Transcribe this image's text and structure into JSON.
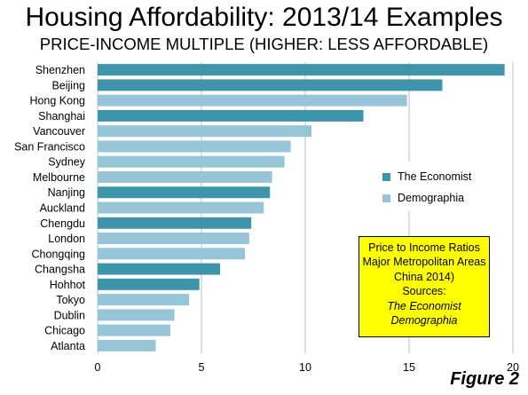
{
  "title": "Housing Affordability: 2013/14 Examples",
  "subtitle": "PRICE-INCOME MULTIPLE (HIGHER: LESS AFFORDABLE)",
  "colors": {
    "economist": "#3e94aa",
    "demographia": "#95c5d6",
    "note_background": "#ffff00",
    "grid": "#bdbdbd"
  },
  "legend": {
    "placement": "right-middle",
    "items": [
      {
        "label": "The Economist",
        "color": "#3e94aa"
      },
      {
        "label": "Demographia",
        "color": "#95c5d6"
      }
    ]
  },
  "note": {
    "lines": [
      "Price to Income Ratios",
      "Major Metropolitan Areas",
      "China  2014)",
      "Sources:"
    ],
    "italic_lines": [
      "The Economist",
      "Demographia"
    ]
  },
  "figure_label": "Figure 2",
  "chart_data": {
    "type": "bar",
    "orientation": "horizontal",
    "title": "Housing Affordability: 2013/14 Examples",
    "subtitle": "PRICE-INCOME MULTIPLE (HIGHER: LESS AFFORDABLE)",
    "xlim": [
      0,
      20
    ],
    "xticks": [
      0,
      5,
      10,
      15,
      20
    ],
    "grid": true,
    "categories": [
      "Shenzhen",
      "Beijing",
      "Hong Kong",
      "Shanghai",
      "Vancouver",
      "San Francisco",
      "Sydney",
      "Melbourne",
      "Nanjing",
      "Auckland",
      "Chengdu",
      "London",
      "Chongqing",
      "Changsha",
      "Hohhot",
      "Tokyo",
      "Dublin",
      "Chicago",
      "Atlanta"
    ],
    "values": [
      19.6,
      16.6,
      14.9,
      12.8,
      10.3,
      9.3,
      9.0,
      8.4,
      8.3,
      8.0,
      7.4,
      7.3,
      7.1,
      5.9,
      4.9,
      4.4,
      3.7,
      3.5,
      2.8
    ],
    "source": [
      "The Economist",
      "The Economist",
      "Demographia",
      "The Economist",
      "Demographia",
      "Demographia",
      "Demographia",
      "Demographia",
      "The Economist",
      "Demographia",
      "The Economist",
      "Demographia",
      "Demographia",
      "The Economist",
      "The Economist",
      "Demographia",
      "Demographia",
      "Demographia",
      "Demographia"
    ]
  }
}
